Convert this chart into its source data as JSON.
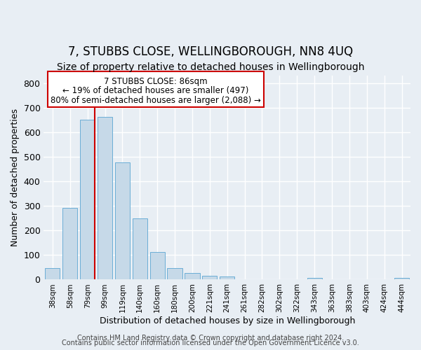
{
  "title": "7, STUBBS CLOSE, WELLINGBOROUGH, NN8 4UQ",
  "subtitle": "Size of property relative to detached houses in Wellingborough",
  "xlabel": "Distribution of detached houses by size in Wellingborough",
  "ylabel": "Number of detached properties",
  "bar_labels": [
    "38sqm",
    "58sqm",
    "79sqm",
    "99sqm",
    "119sqm",
    "140sqm",
    "160sqm",
    "180sqm",
    "200sqm",
    "221sqm",
    "241sqm",
    "261sqm",
    "282sqm",
    "302sqm",
    "322sqm",
    "343sqm",
    "363sqm",
    "383sqm",
    "403sqm",
    "424sqm",
    "444sqm"
  ],
  "bar_values": [
    48,
    293,
    651,
    662,
    478,
    250,
    113,
    48,
    28,
    15,
    13,
    0,
    0,
    0,
    0,
    7,
    0,
    0,
    0,
    0,
    7
  ],
  "bar_color": "#c6d9e8",
  "bar_edge_color": "#6baed6",
  "ref_line_color": "#cc0000",
  "annotation_title": "7 STUBBS CLOSE: 86sqm",
  "annotation_line1": "← 19% of detached houses are smaller (497)",
  "annotation_line2": "80% of semi-detached houses are larger (2,088) →",
  "annotation_box_color": "#ffffff",
  "annotation_box_edge": "#cc0000",
  "ylim": [
    0,
    830
  ],
  "yticks": [
    0,
    100,
    200,
    300,
    400,
    500,
    600,
    700,
    800
  ],
  "footer1": "Contains HM Land Registry data © Crown copyright and database right 2024.",
  "footer2": "Contains public sector information licensed under the Open Government Licence v3.0.",
  "background_color": "#e8eef4",
  "plot_background": "#e8eef4",
  "grid_color": "#ffffff",
  "title_fontsize": 12,
  "subtitle_fontsize": 10,
  "footer_fontsize": 7
}
